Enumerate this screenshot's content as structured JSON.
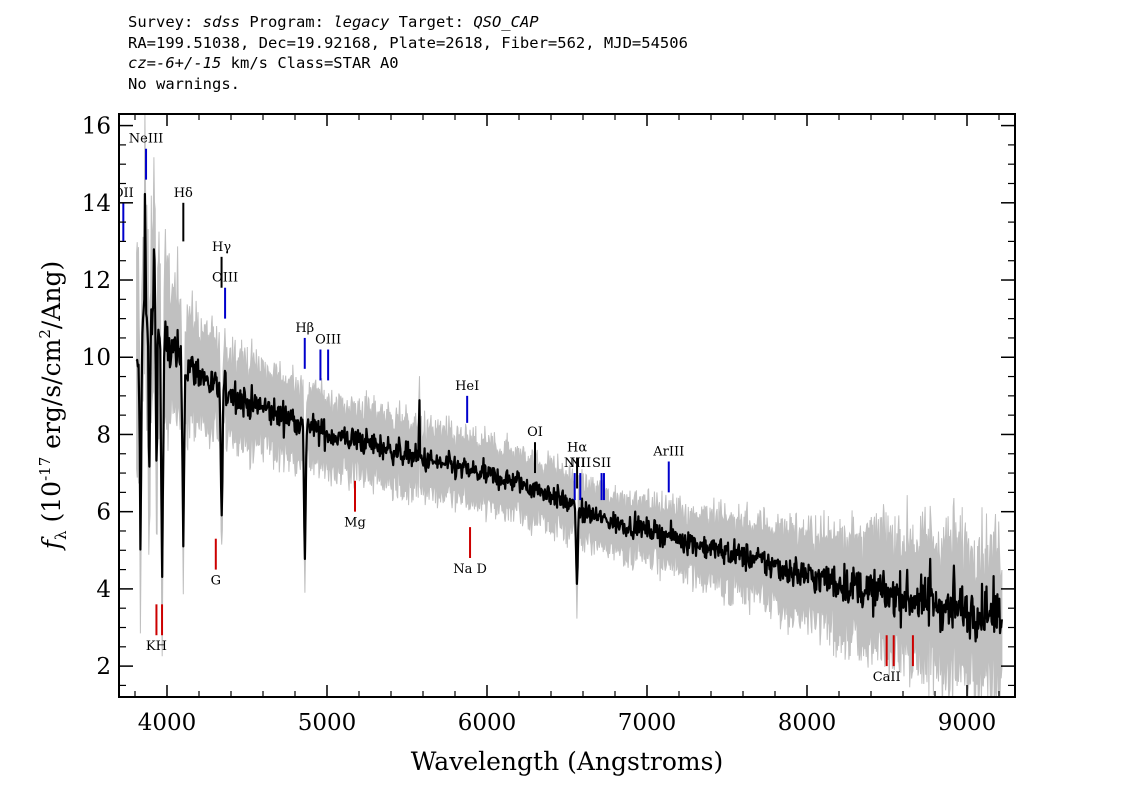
{
  "header": {
    "survey_label": "Survey: ",
    "survey": "sdss",
    "program_label": " Program: ",
    "program": "legacy",
    "target_label": " Target: ",
    "target": "QSO_CAP",
    "line2": "RA=199.51038, Dec=19.92168, Plate=2618, Fiber=562, MJD=54506",
    "cz": "cz=-6+/-15",
    "cz_rest": " km/s Class=STAR A0",
    "line4": "No warnings."
  },
  "chart_data": {
    "type": "line",
    "xlabel": "Wavelength (Angstroms)",
    "ylabel_prefix": "f",
    "ylabel_sub": "λ",
    "ylabel_mid": " (10",
    "ylabel_exp": "-17",
    "ylabel_mid2": " erg/s/cm",
    "ylabel_exp2": "2",
    "ylabel_end": "/Ang)",
    "xlim": [
      3700,
      9300
    ],
    "ylim": [
      1.2,
      16.3
    ],
    "xticks": [
      4000,
      5000,
      6000,
      7000,
      8000,
      9000
    ],
    "yticks": [
      2,
      4,
      6,
      8,
      10,
      12,
      14,
      16
    ],
    "xtick_labels": [
      "4000",
      "5000",
      "6000",
      "7000",
      "8000",
      "9000"
    ],
    "ytick_labels": [
      "2",
      "4",
      "6",
      "8",
      "10",
      "12",
      "14",
      "16"
    ],
    "series": [
      {
        "role": "flux",
        "color": "#000000",
        "x_start": 3810,
        "x_end": 9220,
        "continuum": [
          [
            3810,
            9.4
          ],
          [
            3850,
            11.0
          ],
          [
            3900,
            10.8
          ],
          [
            4000,
            10.3
          ],
          [
            4100,
            9.8
          ],
          [
            4200,
            9.6
          ],
          [
            4300,
            9.2
          ],
          [
            4400,
            9.1
          ],
          [
            4500,
            8.8
          ],
          [
            4600,
            8.7
          ],
          [
            4700,
            8.5
          ],
          [
            4800,
            8.4
          ],
          [
            4900,
            8.2
          ],
          [
            5000,
            8.0
          ],
          [
            5100,
            7.9
          ],
          [
            5200,
            7.85
          ],
          [
            5400,
            7.6
          ],
          [
            5600,
            7.35
          ],
          [
            5800,
            7.15
          ],
          [
            6000,
            6.95
          ],
          [
            6200,
            6.75
          ],
          [
            6400,
            6.45
          ],
          [
            6600,
            6.0
          ],
          [
            6800,
            5.7
          ],
          [
            7000,
            5.55
          ],
          [
            7200,
            5.3
          ],
          [
            7400,
            5.05
          ],
          [
            7600,
            4.85
          ],
          [
            7800,
            4.6
          ],
          [
            8000,
            4.35
          ],
          [
            8200,
            4.15
          ],
          [
            8400,
            3.95
          ],
          [
            8600,
            3.8
          ],
          [
            8800,
            3.6
          ],
          [
            9000,
            3.45
          ],
          [
            9220,
            3.3
          ]
        ],
        "absorption": [
          {
            "x": 3835,
            "depth": 5.0,
            "width": 7
          },
          {
            "x": 3889,
            "depth": 4.0,
            "width": 6
          },
          {
            "x": 3934,
            "depth": 3.2,
            "width": 5
          },
          {
            "x": 3970,
            "depth": 6.0,
            "width": 8
          },
          {
            "x": 4102,
            "depth": 4.0,
            "width": 8
          },
          {
            "x": 4341,
            "depth": 3.5,
            "width": 7
          },
          {
            "x": 4861,
            "depth": 3.5,
            "width": 7
          },
          {
            "x": 6563,
            "depth": 1.8,
            "width": 8
          }
        ],
        "emission": [
          {
            "x": 3862,
            "height": 3.5,
            "width": 4
          },
          {
            "x": 3920,
            "height": 3.0,
            "width": 4
          },
          {
            "x": 5577,
            "height": 1.5,
            "width": 3
          },
          {
            "x": 8770,
            "height": 1.2,
            "width": 3
          },
          {
            "x": 8920,
            "height": 1.0,
            "width": 3
          }
        ]
      },
      {
        "role": "error",
        "color": "#c0c0c0",
        "noise_pattern": [
          {
            "x": 3810,
            "sigma": 1.3
          },
          {
            "x": 4200,
            "sigma": 0.6
          },
          {
            "x": 5000,
            "sigma": 0.45
          },
          {
            "x": 6000,
            "sigma": 0.4
          },
          {
            "x": 7000,
            "sigma": 0.35
          },
          {
            "x": 7500,
            "sigma": 0.45
          },
          {
            "x": 8000,
            "sigma": 0.55
          },
          {
            "x": 8500,
            "sigma": 0.75
          },
          {
            "x": 9220,
            "sigma": 0.9
          }
        ]
      }
    ],
    "emission_lines": [
      {
        "label": "OII",
        "x": 3727,
        "y_top": 14.0,
        "y_bottom": 13.0,
        "color": "#0000cc"
      },
      {
        "label": "NeIII",
        "x": 3869,
        "y_top": 15.4,
        "y_bottom": 14.6,
        "color": "#0000cc"
      },
      {
        "label": "Hδ",
        "x": 4102,
        "y_top": 14.0,
        "y_bottom": 13.0,
        "color": "#000000"
      },
      {
        "label": "Hγ",
        "x": 4341,
        "y_top": 12.6,
        "y_bottom": 11.8,
        "color": "#000000"
      },
      {
        "label": "OIII",
        "x": 4363,
        "y_top": 11.8,
        "y_bottom": 11.0,
        "color": "#0000cc"
      },
      {
        "label": "Hβ",
        "x": 4861,
        "y_top": 10.5,
        "y_bottom": 9.7,
        "color": "#0000cc"
      },
      {
        "label": "",
        "x": 4959,
        "y_top": 10.2,
        "y_bottom": 9.4,
        "color": "#0000cc"
      },
      {
        "label": "OIII",
        "x": 5007,
        "y_top": 10.2,
        "y_bottom": 9.4,
        "color": "#0000cc"
      },
      {
        "label": "HeI",
        "x": 5876,
        "y_top": 9.0,
        "y_bottom": 8.3,
        "color": "#0000cc"
      },
      {
        "label": "OI",
        "x": 6300,
        "y_top": 7.8,
        "y_bottom": 7.0,
        "color": "#000000"
      },
      {
        "label": "NII",
        "x": 6548,
        "y_top": 7.0,
        "y_bottom": 6.3,
        "color": "#0000cc"
      },
      {
        "label": "Hα",
        "x": 6563,
        "y_top": 7.4,
        "y_bottom": 6.6,
        "color": "#000000"
      },
      {
        "label": "NII",
        "x": 6583,
        "y_top": 7.0,
        "y_bottom": 6.3,
        "color": "#0000cc"
      },
      {
        "label": "SII",
        "x": 6716,
        "y_top": 7.0,
        "y_bottom": 6.3,
        "color": "#0000cc"
      },
      {
        "label": "",
        "x": 6731,
        "y_top": 7.0,
        "y_bottom": 6.3,
        "color": "#0000cc"
      },
      {
        "label": "ArIII",
        "x": 7136,
        "y_top": 7.3,
        "y_bottom": 6.5,
        "color": "#0000cc"
      }
    ],
    "absorption_lines": [
      {
        "label": "KH",
        "x": 3934,
        "y_top": 3.6,
        "y_bottom": 2.8,
        "color": "#cc0000"
      },
      {
        "label": "",
        "x": 3969,
        "y_top": 3.6,
        "y_bottom": 2.8,
        "color": "#cc0000"
      },
      {
        "label": "G",
        "x": 4305,
        "y_top": 5.3,
        "y_bottom": 4.5,
        "color": "#cc0000"
      },
      {
        "label": "Mg",
        "x": 5175,
        "y_top": 6.8,
        "y_bottom": 6.0,
        "color": "#cc0000"
      },
      {
        "label": "Na D",
        "x": 5894,
        "y_top": 5.6,
        "y_bottom": 4.8,
        "color": "#cc0000"
      },
      {
        "label": "CaII",
        "x": 8498,
        "y_top": 2.8,
        "y_bottom": 2.0,
        "color": "#cc0000"
      },
      {
        "label": "",
        "x": 8542,
        "y_top": 2.8,
        "y_bottom": 2.0,
        "color": "#cc0000"
      },
      {
        "label": "",
        "x": 8662,
        "y_top": 2.8,
        "y_bottom": 2.0,
        "color": "#cc0000"
      }
    ]
  }
}
